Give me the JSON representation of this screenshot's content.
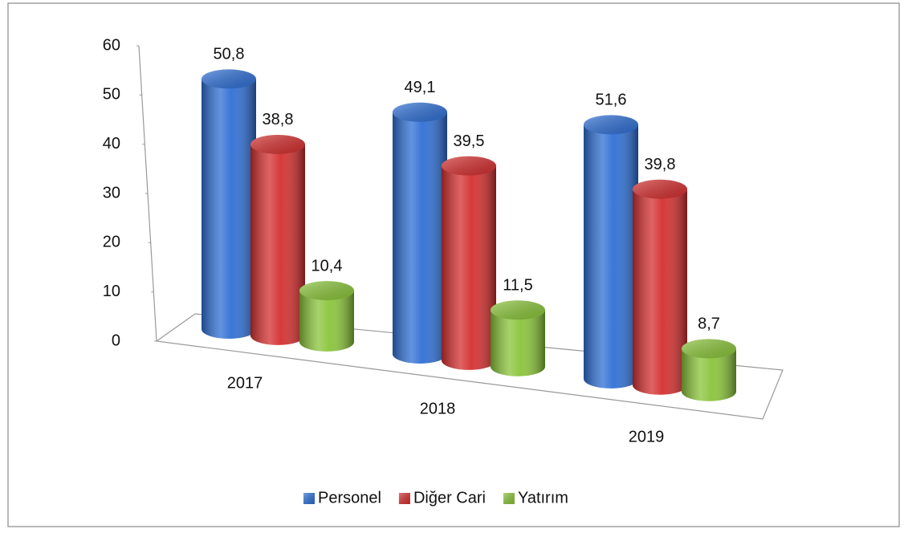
{
  "chart_data": {
    "type": "bar3d",
    "categories": [
      "2017",
      "2018",
      "2019"
    ],
    "series": [
      {
        "name": "Personel",
        "color": "#2f6fd4",
        "values": [
          50.8,
          49.1,
          51.6
        ],
        "value_labels": [
          "50,8",
          "49,1",
          "51,6"
        ]
      },
      {
        "name": "Diğer Cari",
        "color": "#d42f2f",
        "values": [
          38.8,
          39.5,
          39.8
        ],
        "value_labels": [
          "38,8",
          "39,5",
          "39,8"
        ]
      },
      {
        "name": "Yatırım",
        "color": "#8ac43a",
        "values": [
          10.4,
          11.5,
          8.7
        ],
        "value_labels": [
          "10,4",
          "11,5",
          "8,7"
        ]
      }
    ],
    "ylim": [
      0,
      60
    ],
    "yticks": [
      0,
      10,
      20,
      30,
      40,
      50,
      60
    ],
    "legend": "bottom"
  }
}
